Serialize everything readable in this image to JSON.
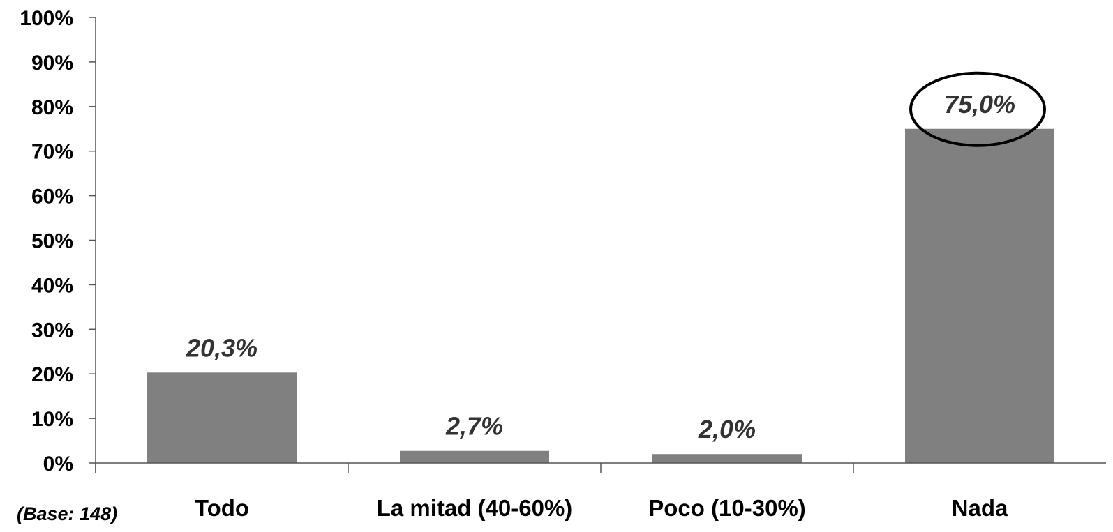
{
  "chart_data": {
    "type": "bar",
    "categories": [
      "Todo",
      "La mitad (40-60%)",
      "Poco (10-30%)",
      "Nada"
    ],
    "values": [
      20.3,
      2.7,
      2.0,
      75.0
    ],
    "value_labels": [
      "20,3%",
      "2,7%",
      "2,0%",
      "75,0%"
    ],
    "y_ticks": [
      "0%",
      "10%",
      "20%",
      "30%",
      "40%",
      "50%",
      "60%",
      "70%",
      "80%",
      "90%",
      "100%"
    ],
    "ylim": [
      0,
      100
    ],
    "grid": false,
    "highlighted_category": "Nada",
    "base_note": "(Base: 148)",
    "colors": {
      "bar": "#808080",
      "axis": "#555555",
      "data_label": "#333333",
      "highlight_ring": "#000000"
    }
  }
}
